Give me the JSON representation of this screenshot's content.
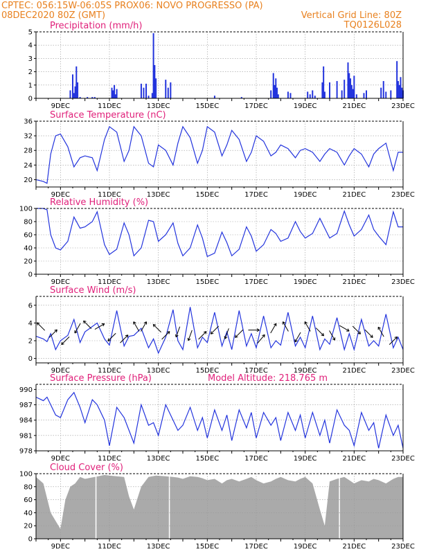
{
  "header": {
    "line1_left": "CPTEC:  056:15W-06:05S  PROX06: NOVO PROGRESSO (PA)",
    "line2_left": "08DEC2020 80Z (GMT)",
    "line2_right": "Vertical Grid Line: 80Z",
    "line3_right": "TQ0126L028"
  },
  "colors": {
    "header": "#e8801e",
    "title": "#e0207a",
    "series": "#2233dd",
    "cloud": "#aaaaaa",
    "grid": "#999999"
  },
  "x_labels": [
    "9DEC",
    "11DEC",
    "13DEC",
    "15DEC",
    "17DEC",
    "19DEC",
    "21DEC",
    "23DEC"
  ],
  "chart_data": [
    {
      "id": "precip",
      "type": "bar",
      "title": "Precipitation (mm/h)",
      "x_range": [
        8,
        23
      ],
      "ylim": [
        0,
        5
      ],
      "yticks": [
        0,
        1,
        2,
        3,
        4,
        5
      ],
      "grid": true,
      "x": [
        9.4,
        9.5,
        9.55,
        9.6,
        9.65,
        9.7,
        9.8,
        10.1,
        10.3,
        10.4,
        11.1,
        11.15,
        11.2,
        11.25,
        11.3,
        12.3,
        12.4,
        12.5,
        12.6,
        12.75,
        12.8,
        12.85,
        12.9,
        13.3,
        13.4,
        13.5,
        15.3,
        16.4,
        17.6,
        17.7,
        17.75,
        17.8,
        17.85,
        17.9,
        18.3,
        18.4,
        19.1,
        19.2,
        19.3,
        19.4,
        19.7,
        19.75,
        19.8,
        20.0,
        20.3,
        20.5,
        20.6,
        20.75,
        20.8,
        20.85,
        20.9,
        20.95,
        21.0,
        21.1,
        21.4,
        21.5,
        22.1,
        22.2,
        22.3,
        22.5,
        22.75,
        22.8,
        22.85,
        22.9,
        22.95,
        23.0
      ],
      "values": [
        0.6,
        1.8,
        0.4,
        0.9,
        2.4,
        1.2,
        0.1,
        0.1,
        0.1,
        0.1,
        0.8,
        0.6,
        1.0,
        0.3,
        0.7,
        1.1,
        0.8,
        1.1,
        0.2,
        0.4,
        4.9,
        2.5,
        1.5,
        1.4,
        0.8,
        1.2,
        0.2,
        0.1,
        0.6,
        1.9,
        1.0,
        1.5,
        0.8,
        0.3,
        0.5,
        0.4,
        0.5,
        0.3,
        0.6,
        0.2,
        1.2,
        2.4,
        0.5,
        1.2,
        1.3,
        0.6,
        1.4,
        2.7,
        1.9,
        1.5,
        1.0,
        0.7,
        1.7,
        0.3,
        0.4,
        0.6,
        0.8,
        1.3,
        0.5,
        0.6,
        2.8,
        1.3,
        1.0,
        1.6,
        0.8,
        0.6
      ]
    },
    {
      "id": "temp",
      "type": "line",
      "title": "Surface Temperature (nC)",
      "x_range": [
        8,
        23
      ],
      "ylim": [
        18,
        36
      ],
      "yticks": [
        20,
        24,
        28,
        32,
        36
      ],
      "grid": true,
      "x": [
        8.0,
        8.3,
        8.45,
        8.6,
        8.8,
        9.0,
        9.3,
        9.55,
        9.8,
        10.0,
        10.3,
        10.5,
        10.8,
        11.0,
        11.3,
        11.6,
        11.8,
        12.0,
        12.3,
        12.6,
        12.8,
        13.0,
        13.3,
        13.6,
        13.8,
        14.0,
        14.3,
        14.6,
        14.8,
        15.0,
        15.3,
        15.6,
        15.8,
        16.0,
        16.3,
        16.6,
        16.8,
        17.0,
        17.3,
        17.6,
        17.8,
        18.0,
        18.3,
        18.6,
        18.8,
        19.0,
        19.3,
        19.6,
        19.8,
        20.0,
        20.3,
        20.6,
        20.8,
        21.0,
        21.3,
        21.6,
        21.8,
        22.0,
        22.3,
        22.6,
        22.8,
        23.0
      ],
      "values": [
        20.0,
        19.5,
        19.0,
        27.0,
        32.0,
        32.5,
        29.0,
        23.5,
        26.0,
        26.5,
        26.0,
        22.5,
        31.0,
        34.5,
        33.0,
        25.0,
        28.0,
        34.5,
        32.0,
        24.5,
        23.5,
        29.5,
        28.0,
        24.0,
        30.0,
        34.5,
        31.5,
        24.5,
        28.0,
        34.5,
        33.0,
        26.5,
        29.5,
        33.5,
        31.0,
        25.0,
        27.5,
        32.0,
        30.5,
        26.5,
        27.5,
        29.5,
        28.5,
        26.0,
        28.0,
        28.5,
        27.5,
        25.0,
        27.0,
        28.5,
        27.5,
        24.0,
        26.5,
        28.5,
        27.0,
        23.5,
        27.0,
        28.5,
        30.0,
        22.5,
        27.5,
        27.5
      ]
    },
    {
      "id": "rh",
      "type": "line",
      "title": "Relative Humidity (%)",
      "x_range": [
        8,
        23
      ],
      "ylim": [
        0,
        100
      ],
      "yticks": [
        0,
        20,
        40,
        60,
        80,
        100
      ],
      "grid": true,
      "x": [
        8.0,
        8.3,
        8.45,
        8.6,
        8.8,
        9.0,
        9.3,
        9.55,
        9.8,
        10.0,
        10.3,
        10.5,
        10.8,
        11.0,
        11.3,
        11.6,
        11.8,
        12.0,
        12.3,
        12.6,
        12.8,
        13.0,
        13.3,
        13.6,
        13.8,
        14.0,
        14.3,
        14.6,
        14.8,
        15.0,
        15.3,
        15.6,
        15.8,
        16.0,
        16.3,
        16.6,
        16.8,
        17.0,
        17.3,
        17.6,
        17.8,
        18.0,
        18.3,
        18.6,
        18.8,
        19.0,
        19.3,
        19.6,
        19.8,
        20.0,
        20.3,
        20.6,
        20.8,
        21.0,
        21.3,
        21.6,
        21.8,
        22.0,
        22.3,
        22.6,
        22.8,
        23.0
      ],
      "values": [
        100.0,
        100.0,
        98.0,
        60.0,
        40.0,
        37.0,
        50.0,
        87.0,
        70.0,
        72.0,
        80.0,
        95.0,
        45.0,
        30.0,
        38.0,
        78.0,
        60.0,
        28.0,
        40.0,
        82.0,
        80.0,
        50.0,
        60.0,
        78.0,
        47.0,
        28.0,
        40.0,
        75.0,
        55.0,
        27.0,
        32.0,
        64.0,
        48.0,
        28.0,
        38.0,
        72.0,
        58.0,
        35.0,
        45.0,
        68.0,
        62.0,
        50.0,
        55.0,
        80.0,
        65.0,
        55.0,
        62.0,
        85.0,
        70.0,
        55.0,
        62.0,
        96.0,
        75.0,
        58.0,
        68.0,
        90.0,
        68.0,
        58.0,
        45.0,
        95.0,
        72.0,
        72.0
      ]
    },
    {
      "id": "wind",
      "type": "line",
      "title": "Surface Wind (m/s)",
      "x_range": [
        8,
        23
      ],
      "ylim": [
        -0.5,
        7
      ],
      "yticks": [
        0,
        2,
        4,
        6
      ],
      "grid": true,
      "x": [
        8.0,
        8.3,
        8.45,
        8.6,
        8.8,
        9.0,
        9.3,
        9.55,
        9.8,
        10.0,
        10.3,
        10.5,
        10.8,
        11.0,
        11.3,
        11.6,
        11.8,
        12.0,
        12.3,
        12.6,
        12.8,
        13.0,
        13.3,
        13.6,
        13.8,
        14.0,
        14.3,
        14.6,
        14.8,
        15.0,
        15.3,
        15.6,
        15.8,
        16.0,
        16.3,
        16.6,
        16.8,
        17.0,
        17.3,
        17.6,
        17.8,
        18.0,
        18.3,
        18.6,
        18.8,
        19.0,
        19.3,
        19.6,
        19.8,
        20.0,
        20.3,
        20.6,
        20.8,
        21.0,
        21.3,
        21.6,
        21.8,
        22.0,
        22.3,
        22.6,
        22.8,
        23.0
      ],
      "values": [
        2.5,
        2.2,
        1.9,
        2.8,
        1.0,
        2.0,
        2.6,
        4.4,
        1.8,
        3.0,
        3.6,
        4.0,
        2.2,
        1.5,
        5.4,
        1.4,
        2.5,
        2.6,
        3.4,
        1.2,
        2.2,
        0.6,
        2.4,
        5.5,
        2.0,
        1.0,
        5.8,
        1.2,
        2.4,
        1.8,
        5.2,
        1.4,
        3.0,
        1.0,
        5.4,
        1.4,
        2.8,
        1.2,
        4.8,
        1.2,
        2.0,
        1.5,
        5.2,
        1.4,
        2.4,
        1.2,
        4.8,
        1.0,
        2.2,
        1.6,
        4.6,
        1.0,
        2.8,
        1.0,
        4.4,
        1.4,
        2.0,
        1.4,
        5.0,
        1.2,
        2.4,
        1.0
      ],
      "arrows": [
        {
          "x": 8.2,
          "y": 3.6,
          "dir": 315
        },
        {
          "x": 8.7,
          "y": 2.8,
          "dir": 45
        },
        {
          "x": 9.2,
          "y": 2.0,
          "dir": 225
        },
        {
          "x": 9.7,
          "y": 3.4,
          "dir": 210
        },
        {
          "x": 10.1,
          "y": 3.8,
          "dir": 315
        },
        {
          "x": 10.6,
          "y": 3.6,
          "dir": 60
        },
        {
          "x": 11.1,
          "y": 2.4,
          "dir": 225
        },
        {
          "x": 11.6,
          "y": 2.2,
          "dir": 45
        },
        {
          "x": 12.1,
          "y": 3.6,
          "dir": 330
        },
        {
          "x": 12.4,
          "y": 3.6,
          "dir": 30
        },
        {
          "x": 12.95,
          "y": 3.4,
          "dir": 315
        },
        {
          "x": 13.3,
          "y": 2.6,
          "dir": 45
        },
        {
          "x": 13.8,
          "y": 3.0,
          "dir": 200
        },
        {
          "x": 14.3,
          "y": 2.6,
          "dir": 200
        },
        {
          "x": 14.8,
          "y": 2.6,
          "dir": 45
        },
        {
          "x": 15.3,
          "y": 3.2,
          "dir": 225
        },
        {
          "x": 15.8,
          "y": 2.8,
          "dir": 200
        },
        {
          "x": 16.3,
          "y": 2.8,
          "dir": 225
        },
        {
          "x": 16.9,
          "y": 3.2,
          "dir": 90
        },
        {
          "x": 17.2,
          "y": 2.2,
          "dir": 40
        },
        {
          "x": 17.7,
          "y": 3.4,
          "dir": 30
        },
        {
          "x": 18.2,
          "y": 3.6,
          "dir": 330
        },
        {
          "x": 18.7,
          "y": 2.4,
          "dir": 210
        },
        {
          "x": 19.1,
          "y": 3.6,
          "dir": 330
        },
        {
          "x": 19.6,
          "y": 3.0,
          "dir": 135
        },
        {
          "x": 20.1,
          "y": 2.6,
          "dir": 150
        },
        {
          "x": 20.6,
          "y": 3.4,
          "dir": 120
        },
        {
          "x": 21.1,
          "y": 3.2,
          "dir": 135
        },
        {
          "x": 21.6,
          "y": 2.8,
          "dir": 135
        },
        {
          "x": 22.1,
          "y": 3.0,
          "dir": 330
        },
        {
          "x": 22.6,
          "y": 2.0,
          "dir": 45
        }
      ]
    },
    {
      "id": "pres",
      "type": "line",
      "title": "Surface Pressure (hPa)",
      "annotation": "Model Altitude: 218.765 m",
      "x_range": [
        8,
        23
      ],
      "ylim": [
        978,
        991
      ],
      "yticks": [
        978,
        981,
        984,
        987,
        990
      ],
      "grid": true,
      "x": [
        8.0,
        8.3,
        8.45,
        8.6,
        8.8,
        9.0,
        9.3,
        9.55,
        9.8,
        10.0,
        10.3,
        10.5,
        10.8,
        11.0,
        11.3,
        11.6,
        11.8,
        12.0,
        12.3,
        12.6,
        12.8,
        13.0,
        13.3,
        13.6,
        13.8,
        14.0,
        14.3,
        14.6,
        14.8,
        15.0,
        15.3,
        15.6,
        15.8,
        16.0,
        16.3,
        16.6,
        16.8,
        17.0,
        17.3,
        17.6,
        17.8,
        18.0,
        18.3,
        18.6,
        18.8,
        19.0,
        19.3,
        19.6,
        19.8,
        20.0,
        20.3,
        20.6,
        20.8,
        21.0,
        21.3,
        21.6,
        21.8,
        22.0,
        22.3,
        22.6,
        22.8,
        23.0
      ],
      "values": [
        988.5,
        987.8,
        988.5,
        987.0,
        985.0,
        984.5,
        988.0,
        989.4,
        986.5,
        983.5,
        988.0,
        987.0,
        984.0,
        979.0,
        986.5,
        984.5,
        982.0,
        979.5,
        987.0,
        983.0,
        983.5,
        981.0,
        987.0,
        984.0,
        982.0,
        983.0,
        986.5,
        982.0,
        984.5,
        980.5,
        986.0,
        982.0,
        985.0,
        980.0,
        986.0,
        982.5,
        985.5,
        980.5,
        985.5,
        983.0,
        984.5,
        980.0,
        985.5,
        982.0,
        985.0,
        980.5,
        985.5,
        981.0,
        984.0,
        979.5,
        986.0,
        983.0,
        982.0,
        979.0,
        985.5,
        982.0,
        983.5,
        978.5,
        985.0,
        981.0,
        983.0,
        978.5
      ]
    },
    {
      "id": "cloud",
      "type": "area",
      "title": "Cloud Cover (%)",
      "x_range": [
        8,
        23
      ],
      "ylim": [
        0,
        100
      ],
      "yticks": [
        0,
        20,
        40,
        60,
        80,
        100
      ],
      "grid": true,
      "x": [
        8.0,
        8.3,
        8.6,
        9.0,
        9.2,
        9.4,
        9.6,
        9.8,
        10.0,
        10.4,
        10.8,
        11.0,
        11.3,
        11.6,
        11.8,
        12.0,
        12.3,
        12.6,
        12.9,
        13.3,
        13.6,
        13.8,
        14.0,
        14.3,
        14.6,
        14.8,
        15.0,
        15.3,
        15.6,
        15.8,
        16.0,
        16.3,
        16.6,
        16.8,
        17.0,
        17.3,
        17.6,
        17.8,
        18.0,
        18.3,
        18.6,
        18.8,
        19.0,
        19.3,
        19.6,
        19.8,
        20.0,
        20.3,
        20.6,
        20.8,
        21.0,
        21.3,
        21.6,
        21.8,
        22.0,
        22.3,
        22.6,
        22.8,
        23.0
      ],
      "values": [
        95.0,
        85.0,
        40.0,
        15.0,
        60.0,
        80.0,
        85.0,
        95.0,
        92.0,
        95.0,
        98.0,
        97.0,
        96.0,
        95.0,
        65.0,
        45.0,
        80.0,
        95.0,
        97.0,
        96.0,
        95.0,
        94.0,
        92.0,
        96.0,
        95.0,
        93.0,
        90.0,
        92.0,
        85.0,
        90.0,
        92.0,
        88.0,
        92.0,
        95.0,
        90.0,
        85.0,
        88.0,
        92.0,
        95.0,
        90.0,
        88.0,
        92.0,
        95.0,
        85.0,
        45.0,
        20.0,
        88.0,
        92.0,
        95.0,
        90.0,
        85.0,
        90.0,
        88.0,
        92.0,
        90.0,
        85.0,
        92.0,
        95.0,
        95.0
      ],
      "gap_lines": [
        10.45,
        13.45,
        20.4
      ]
    }
  ]
}
